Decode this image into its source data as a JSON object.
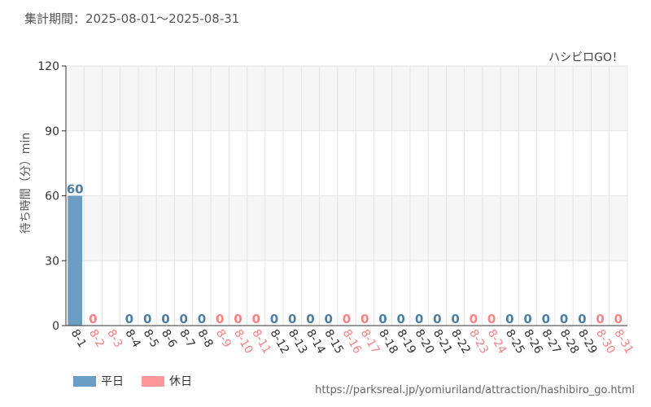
{
  "header": {
    "period_label": "集計期間：2025-08-01～2025-08-31"
  },
  "chart_data": {
    "type": "bar",
    "title": "ハシビロGO！",
    "ylabel": "待ち時間（分）min",
    "xlabel": "",
    "ylim": [
      0,
      120
    ],
    "yticks": [
      0,
      30,
      60,
      90,
      120
    ],
    "grid": true,
    "categories": [
      "8-1",
      "8-2",
      "8-3",
      "8-4",
      "8-5",
      "8-6",
      "8-7",
      "8-8",
      "8-9",
      "8-10",
      "8-11",
      "8-12",
      "8-13",
      "8-14",
      "8-15",
      "8-16",
      "8-17",
      "8-18",
      "8-19",
      "8-20",
      "8-21",
      "8-22",
      "8-23",
      "8-24",
      "8-25",
      "8-26",
      "8-27",
      "8-28",
      "8-29",
      "8-30",
      "8-31"
    ],
    "values": [
      60,
      0,
      null,
      0,
      0,
      0,
      0,
      0,
      0,
      0,
      0,
      0,
      0,
      0,
      0,
      0,
      0,
      0,
      0,
      0,
      0,
      0,
      0,
      0,
      0,
      0,
      0,
      0,
      0,
      0,
      0
    ],
    "day_type": [
      "平日",
      "休日",
      "休日",
      "平日",
      "平日",
      "平日",
      "平日",
      "平日",
      "休日",
      "休日",
      "休日",
      "平日",
      "平日",
      "平日",
      "平日",
      "休日",
      "休日",
      "平日",
      "平日",
      "平日",
      "平日",
      "平日",
      "休日",
      "休日",
      "平日",
      "平日",
      "平日",
      "平日",
      "平日",
      "休日",
      "休日"
    ],
    "series": [
      {
        "name": "平日",
        "color": "#6a9ec5"
      },
      {
        "name": "休日",
        "color": "#ff9999"
      }
    ],
    "legend_position": "bottom-left"
  },
  "colors": {
    "weekday": "#6a9ec5",
    "weekday_label": "#4a7fa8",
    "holiday": "#ff9999",
    "holiday_label": "#ff8080",
    "grid": "#e4e4e4",
    "band": "#f6f6f6"
  },
  "source": {
    "url_text": "https://parksreal.jp/yomiuriland/attraction/hashibiro_go.html"
  }
}
